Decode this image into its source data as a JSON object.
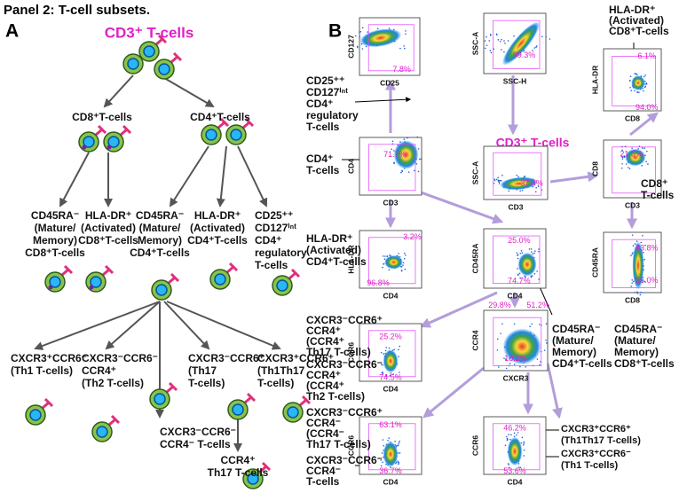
{
  "title": "Panel 2: T-cell subsets.",
  "panel_a": {
    "label": "A",
    "root": "CD3⁺ T-cells",
    "nodes": [
      [
        "CD8⁺T-cells"
      ],
      [
        "CD4⁺T-cells"
      ],
      [
        "CD45RA⁻",
        "(Mature/",
        "Memory)",
        "CD8⁺T-cells"
      ],
      [
        "HLA-DR⁺",
        "(Activated)",
        "CD8⁺T-cells"
      ],
      [
        "CD45RA⁻",
        "(Mature/",
        "Memory)",
        "CD4⁺T-cells"
      ],
      [
        "HLA-DR⁺",
        "(Activated)",
        "CD4⁺T-cells"
      ],
      [
        "CD25⁺⁺",
        "CD127ⁱⁿᵗ",
        "CD4⁺",
        "regulatory",
        "T-cells"
      ],
      [
        "CXCR3⁺CCR6⁻",
        "(Th1 T-cells)"
      ],
      [
        "CXCR3⁻CCR6⁻",
        "CCR4⁺",
        "(Th2 T-cells)"
      ],
      [
        "CXCR3⁻CCR6⁻",
        "CCR4⁻ T-cells"
      ],
      [
        "CXCR3⁻CCR6⁺",
        "(Th17",
        "T-cells)"
      ],
      [
        "CXCR3⁺CCR6⁺",
        "(Th1Th17",
        "T-cells)"
      ],
      [
        "CCR4⁺",
        "Th17 T-cells"
      ]
    ]
  },
  "panel_b": {
    "label": "B",
    "gate_title": "CD3⁺ T-cells",
    "plots": [
      {
        "y_axis": "CD127",
        "x_axis": "CD25",
        "gates": [
          "7.8%"
        ]
      },
      {
        "y_axis": "SSC-A",
        "x_axis": "SSC-H",
        "gates": [
          "99.3%"
        ]
      },
      {
        "y_axis": "HLA-DR",
        "x_axis": "CD8",
        "gates": [
          "6.1%",
          "94.0%"
        ]
      },
      {
        "y_axis": "CD4",
        "x_axis": "CD3",
        "gates": [
          "71.7%"
        ]
      },
      {
        "y_axis": "SSC-A",
        "x_axis": "CD3",
        "gates": [
          "37.4%"
        ]
      },
      {
        "y_axis": "CD8",
        "x_axis": "CD3",
        "gates": [
          "21.5%"
        ]
      },
      {
        "y_axis": "HLA-DR",
        "x_axis": "CD4",
        "gates": [
          "3.2%",
          "96.8%"
        ]
      },
      {
        "y_axis": "CD45RA",
        "x_axis": "CD4",
        "gates": [
          "25.0%",
          "74.7%"
        ]
      },
      {
        "y_axis": "CD45RA",
        "x_axis": "CD8",
        "gates": [
          "43.8%",
          "56.0%"
        ]
      },
      {
        "y_axis": "CCR6",
        "x_axis": "CD4",
        "gates": [
          "25.2%",
          "74.5%"
        ]
      },
      {
        "y_axis": "CCR4",
        "x_axis": "CXCR3",
        "gates": [
          "29.8%",
          "51.2%",
          "18.2%"
        ]
      },
      {
        "y_axis": "CCR6",
        "x_axis": "CD4",
        "gates": [
          "63.1%",
          "36.7%"
        ]
      },
      {
        "y_axis": "CCR6",
        "x_axis": "CD4",
        "gates": [
          "46.2%",
          "53.6%"
        ]
      }
    ],
    "labels": [
      [
        "CD25⁺⁺",
        "CD127ⁱⁿᵗ",
        "CD4⁺",
        "regulatory",
        "T-cells"
      ],
      [
        "HLA-DR⁺",
        "(Activated)",
        "CD8⁺T-cells"
      ],
      [
        "CD4⁺",
        "T-cells"
      ],
      [
        "CD8⁺",
        "T-cells"
      ],
      [
        "HLA-DR⁺",
        "(Activated)",
        "CD4⁺T-cells"
      ],
      [
        "CD45RA⁻",
        "(Mature/",
        "Memory)",
        "CD4⁺T-cells"
      ],
      [
        "CD45RA⁻",
        "(Mature/",
        "Memory)",
        "CD8⁺T-cells"
      ],
      [
        "CXCR3⁻CCR6⁺",
        "CCR4⁺",
        "(CCR4⁺",
        "Th17 T-cells)"
      ],
      [
        "CXCR3⁻CCR6⁻",
        "CCR4⁺",
        "(CCR4⁺",
        "Th2 T-cells)"
      ],
      [
        "CXCR3⁻CCR6⁺",
        "CCR4⁻",
        "(CCR4⁻",
        "Th17 T-cells)"
      ],
      [
        "CXCR3⁻CCR6⁻",
        "CCR4⁻",
        "T-cells"
      ],
      [
        "CXCR3⁺CCR6⁺",
        "(Th1Th17 T-cells)"
      ],
      [
        "CXCR3⁺CCR6⁻",
        "(Th1 T-cells)"
      ]
    ]
  }
}
